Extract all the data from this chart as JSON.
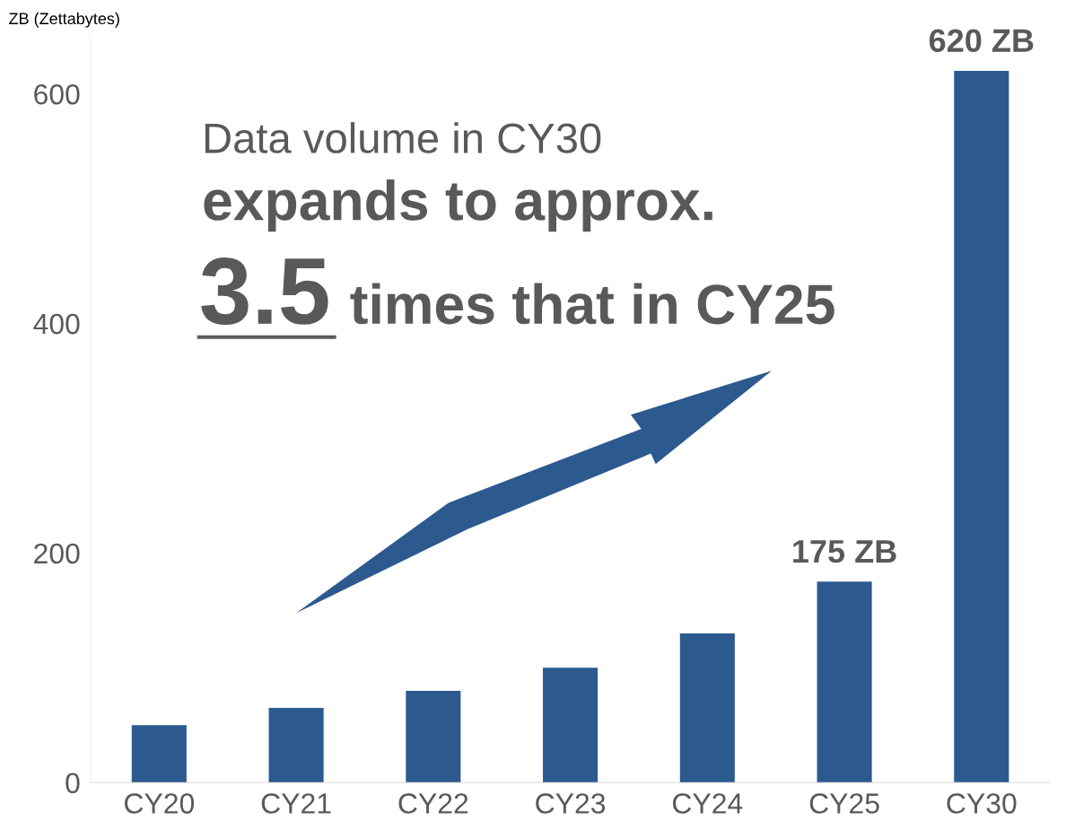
{
  "chart_data": {
    "type": "bar",
    "ylabel": "ZB (Zettabytes)",
    "categories": [
      "CY20",
      "CY21",
      "CY22",
      "CY23",
      "CY24",
      "CY25",
      "CY30"
    ],
    "values": [
      50,
      65,
      80,
      100,
      130,
      175,
      620
    ],
    "value_labels": [
      null,
      null,
      null,
      null,
      null,
      "175 ZB",
      "620 ZB"
    ],
    "color": "#2c5a8f",
    "ylim": [
      0,
      650
    ],
    "yticks": [
      0,
      200,
      400,
      600
    ],
    "grid": false,
    "annotations": [
      "Data volume in CY30",
      "expands to approx.",
      "3.5",
      "times that in CY25"
    ]
  }
}
